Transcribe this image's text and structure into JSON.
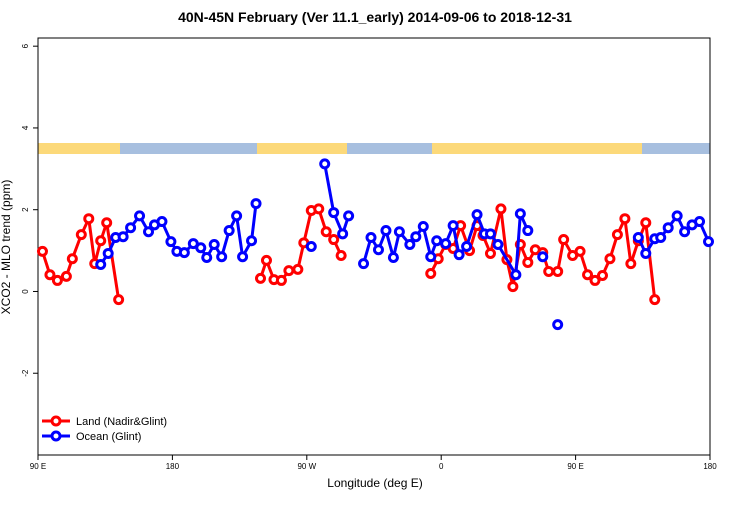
{
  "chart_data": {
    "type": "line",
    "title": "40N-45N February (Ver 11.1_early)   2014-09-06 to 2018-12-31",
    "x_label": "Longitude (deg E)",
    "y_label": "XCO2 - MLO trend (ppm)",
    "xlim": [
      90,
      540
    ],
    "ylim": [
      -4,
      6.2
    ],
    "xticks": [
      {
        "value": 90,
        "label": "90 E"
      },
      180,
      {
        "value": 270,
        "label": "90 W"
      },
      {
        "value": 360,
        "label": "0"
      },
      {
        "value": 450,
        "label": "90 E"
      },
      {
        "value": 540,
        "label": "180"
      }
    ],
    "yticks": [
      -2,
      0,
      2,
      4,
      6
    ],
    "legend": "bottomleft",
    "series": [
      {
        "name": "Land (Nadir&Glint)",
        "color": "#ff0000",
        "x": [
          93,
          98,
          103,
          109,
          113,
          119,
          124,
          128,
          132,
          136,
          144,
          170,
          239,
          243,
          248,
          253,
          258,
          264,
          268,
          273,
          278,
          283,
          288,
          293,
          340,
          353,
          358,
          363,
          368,
          373,
          379,
          384,
          388,
          393,
          400,
          404,
          408,
          413,
          418,
          423,
          428,
          432,
          438,
          442,
          448,
          453,
          458,
          463,
          468,
          473,
          478,
          483,
          487,
          492,
          497,
          503
        ],
        "values": [
          0.98,
          0.41,
          0.27,
          0.37,
          0.8,
          1.39,
          1.78,
          0.68,
          1.24,
          1.68,
          -0.2,
          null,
          0.32,
          0.76,
          0.29,
          0.27,
          0.51,
          0.54,
          1.19,
          1.98,
          2.02,
          1.46,
          1.27,
          0.88,
          null,
          0.44,
          0.8,
          1.15,
          1.05,
          1.61,
          1.0,
          1.61,
          1.37,
          0.93,
          2.02,
          0.78,
          0.12,
          1.15,
          0.71,
          1.02,
          0.95,
          0.49,
          0.49,
          1.27,
          0.88,
          0.98,
          0.41,
          0.27,
          0.39,
          0.8,
          1.39,
          1.78,
          0.68,
          1.24,
          1.68,
          -0.2
        ]
      },
      {
        "name": "Ocean (Glint)",
        "color": "#0000ff",
        "x": [
          132,
          137,
          142,
          147,
          152,
          158,
          164,
          168,
          173,
          179,
          183,
          188,
          194,
          199,
          203,
          208,
          213,
          218,
          223,
          227,
          233,
          236,
          240,
          273,
          278,
          282,
          288,
          294,
          298,
          303,
          308,
          313,
          318,
          323,
          328,
          332,
          339,
          343,
          348,
          353,
          357,
          363,
          368,
          372,
          377,
          384,
          389,
          393,
          398,
          410,
          413,
          418,
          423,
          428,
          433,
          438,
          465,
          492,
          497,
          503,
          507,
          512,
          518,
          523,
          528,
          533,
          539
        ],
        "values": [
          0.66,
          0.93,
          1.32,
          1.34,
          1.56,
          1.85,
          1.46,
          1.63,
          1.71,
          1.22,
          0.98,
          0.95,
          1.17,
          1.07,
          0.83,
          1.15,
          0.85,
          1.49,
          1.85,
          0.85,
          1.24,
          2.15,
          null,
          1.1,
          null,
          3.12,
          1.93,
          1.41,
          1.85,
          null,
          0.68,
          1.32,
          1.02,
          1.49,
          0.83,
          1.46,
          1.15,
          1.34,
          1.59,
          0.85,
          1.24,
          1.17,
          1.61,
          0.9,
          1.1,
          1.88,
          1.41,
          1.41,
          1.15,
          0.41,
          1.9,
          1.49,
          null,
          0.85,
          null,
          -0.81,
          null,
          1.32,
          0.93,
          1.29,
          1.32,
          1.56,
          1.85,
          1.46,
          1.63,
          1.71,
          1.22
        ]
      }
    ]
  }
}
